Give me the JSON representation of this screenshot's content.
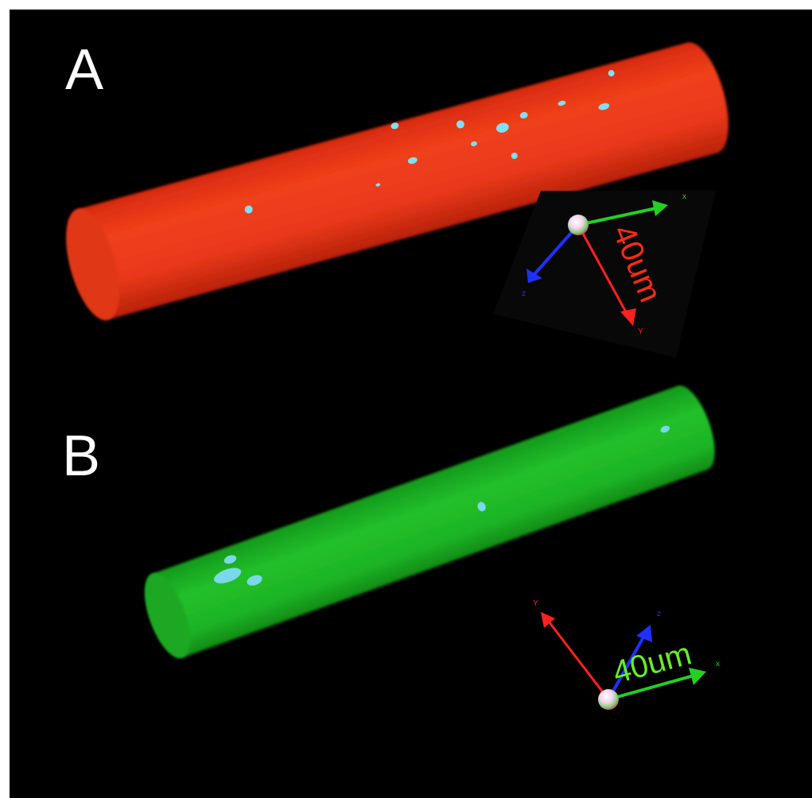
{
  "panels": [
    {
      "label": "A",
      "scale_label": "40um",
      "axes": {
        "x": "x",
        "y": "Y",
        "z": "z"
      }
    },
    {
      "label": "B",
      "scale_label": "40um",
      "axes": {
        "x": "x",
        "y": "Y",
        "z": "z"
      }
    }
  ]
}
